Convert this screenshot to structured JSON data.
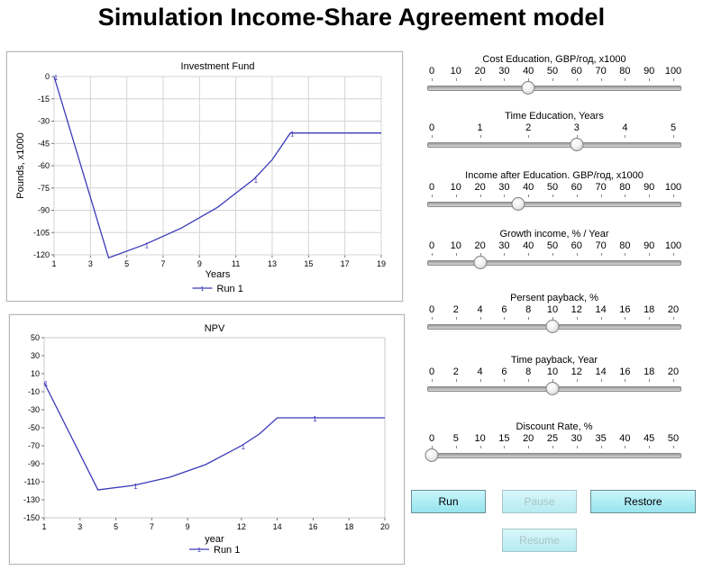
{
  "title": "Simulation Income-Share Agreement model",
  "charts": [
    {
      "id": "investment-fund",
      "title": "Investment Fund",
      "xlabel": "Years",
      "ylabel": "Pounds, x1000",
      "legend": "Run 1",
      "chart_data": {
        "type": "line",
        "title": "Investment Fund",
        "xlabel": "Years",
        "ylabel": "Pounds, x1000",
        "xlim": [
          1,
          19
        ],
        "ylim": [
          -120,
          0
        ],
        "xticks": [
          "1",
          "3",
          "5",
          "7",
          "9",
          "11",
          "13",
          "15",
          "17",
          "19"
        ],
        "yticks": [
          "0",
          "-15",
          "-30",
          "-45",
          "-60",
          "-75",
          "-90",
          "-105",
          "-120"
        ],
        "grid": true,
        "legend_position": "bottom",
        "series": [
          {
            "name": "Run 1",
            "color": "#3a3ab8",
            "x": [
              1,
              4,
              6,
              8,
              10,
              12,
              13,
              14,
              19
            ],
            "y": [
              0,
              -122,
              -113,
              -102,
              -88,
              -69,
              -56,
              -38,
              -38
            ]
          }
        ]
      }
    },
    {
      "id": "npv",
      "title": "NPV",
      "xlabel": "year",
      "ylabel": "",
      "legend": "Run 1",
      "chart_data": {
        "type": "line",
        "title": "NPV",
        "xlabel": "year",
        "xlim": [
          1,
          20
        ],
        "ylim": [
          -150,
          50
        ],
        "xticks": [
          "1",
          "3",
          "5",
          "7",
          "9",
          "12",
          "14",
          "16",
          "18",
          "20"
        ],
        "yticks": [
          "50",
          "30",
          "10",
          "-10",
          "-30",
          "-50",
          "-70",
          "-90",
          "-110",
          "-130",
          "-150"
        ],
        "grid": false,
        "legend_position": "bottom",
        "series": [
          {
            "name": "Run 1",
            "color": "#3a3ab8",
            "x": [
              1,
              4,
              6,
              8,
              10,
              12,
              13,
              14,
              16,
              20
            ],
            "y": [
              0,
              -119,
              -114,
              -105,
              -91,
              -70,
              -57,
              -39,
              -39,
              -39
            ]
          }
        ]
      }
    }
  ],
  "sliders": [
    {
      "label": "Cost Education, GBP/год, x1000",
      "ticks": [
        "0",
        "10",
        "20",
        "30",
        "40",
        "50",
        "60",
        "70",
        "80",
        "90",
        "100"
      ],
      "min": 0,
      "max": 100,
      "value": 40
    },
    {
      "label": "Time Education, Years",
      "ticks": [
        "0",
        "1",
        "2",
        "3",
        "4",
        "5"
      ],
      "min": 0,
      "max": 5,
      "value": 3
    },
    {
      "label": "Income after Education. GBP/год, x1000",
      "ticks": [
        "0",
        "10",
        "20",
        "30",
        "40",
        "50",
        "60",
        "70",
        "80",
        "90",
        "100"
      ],
      "min": 0,
      "max": 100,
      "value": 36
    },
    {
      "label": "Growth income, % / Year",
      "ticks": [
        "0",
        "10",
        "20",
        "30",
        "40",
        "50",
        "60",
        "70",
        "80",
        "90",
        "100"
      ],
      "min": 0,
      "max": 100,
      "value": 20
    },
    {
      "label": "Persent payback, %",
      "ticks": [
        "0",
        "2",
        "4",
        "6",
        "8",
        "10",
        "12",
        "14",
        "16",
        "18",
        "20"
      ],
      "min": 0,
      "max": 20,
      "value": 10
    },
    {
      "label": "Time payback, Year",
      "ticks": [
        "0",
        "2",
        "4",
        "6",
        "8",
        "10",
        "12",
        "14",
        "16",
        "18",
        "20"
      ],
      "min": 0,
      "max": 20,
      "value": 10
    },
    {
      "label": "Discount Rate, %",
      "ticks": [
        "0",
        "5",
        "10",
        "15",
        "20",
        "25",
        "30",
        "35",
        "40",
        "45",
        "50"
      ],
      "min": 0,
      "max": 50,
      "value": 0
    }
  ],
  "buttons": {
    "run": "Run",
    "pause": "Pause",
    "restore": "Restore",
    "resume": "Resume"
  }
}
